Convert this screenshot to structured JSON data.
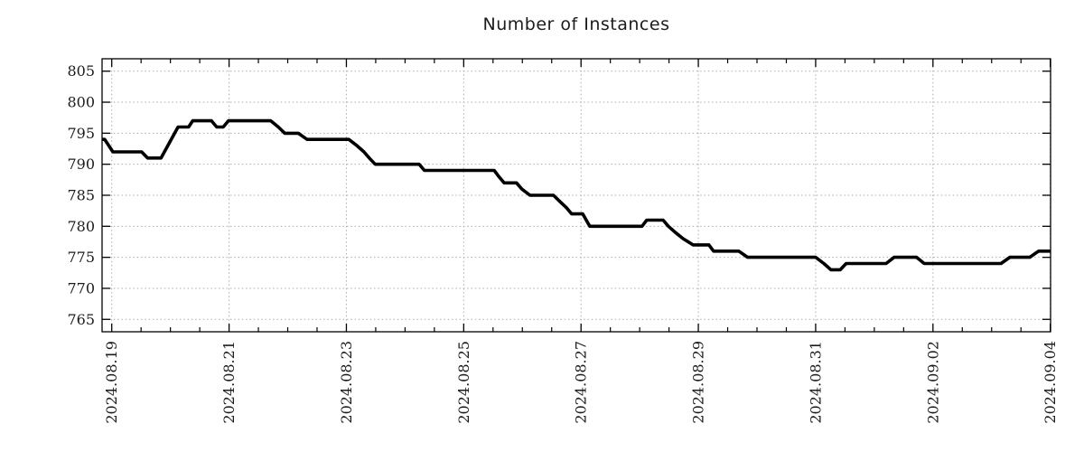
{
  "style": {
    "background": "#ffffff",
    "grid_color": "#ababab",
    "axis_color": "#000000",
    "text_color": "#1c1c1c",
    "line_color": "#000000",
    "line_width": 3.6
  },
  "chart_data": {
    "type": "line",
    "title": "Number of Instances",
    "grid": true,
    "legend": "none",
    "x_axis": {
      "kind": "time",
      "tick_labels": [
        "2024.08.19",
        "2024.08.21",
        "2024.08.23",
        "2024.08.25",
        "2024.08.27",
        "2024.08.29",
        "2024.08.31",
        "2024.09.02",
        "2024.09.04"
      ],
      "major_tick_days": [
        0,
        2,
        4,
        6,
        8,
        10,
        12,
        14,
        16
      ],
      "minor_tick_interval_days": 0.5,
      "range_days": [
        -0.165,
        16.005
      ]
    },
    "y_axis": {
      "tick_values": [
        765,
        770,
        775,
        780,
        785,
        790,
        795,
        800,
        805
      ],
      "range": [
        763,
        807
      ]
    },
    "series": [
      {
        "name": "Number of Instances",
        "color": "#000000",
        "points": [
          [
            -0.17,
            794
          ],
          [
            -0.12,
            794
          ],
          [
            0.02,
            792
          ],
          [
            0.51,
            792
          ],
          [
            0.61,
            791
          ],
          [
            0.84,
            791
          ],
          [
            1.13,
            796
          ],
          [
            1.31,
            796
          ],
          [
            1.38,
            797
          ],
          [
            1.7,
            797
          ],
          [
            1.79,
            796
          ],
          [
            1.9,
            796
          ],
          [
            1.99,
            797
          ],
          [
            2.71,
            797
          ],
          [
            2.84,
            796
          ],
          [
            2.95,
            795
          ],
          [
            3.18,
            795
          ],
          [
            3.33,
            794
          ],
          [
            4.04,
            794
          ],
          [
            4.18,
            793
          ],
          [
            4.3,
            792
          ],
          [
            4.39,
            791
          ],
          [
            4.49,
            790
          ],
          [
            5.24,
            790
          ],
          [
            5.33,
            789
          ],
          [
            6.52,
            789
          ],
          [
            6.6,
            788
          ],
          [
            6.69,
            787
          ],
          [
            6.9,
            787
          ],
          [
            6.99,
            786
          ],
          [
            7.13,
            785
          ],
          [
            7.53,
            785
          ],
          [
            7.64,
            784
          ],
          [
            7.75,
            783
          ],
          [
            7.84,
            782
          ],
          [
            8.03,
            782
          ],
          [
            8.09,
            781
          ],
          [
            8.15,
            780
          ],
          [
            9.04,
            780
          ],
          [
            9.12,
            781
          ],
          [
            9.4,
            781
          ],
          [
            9.49,
            780
          ],
          [
            9.61,
            779
          ],
          [
            9.74,
            778
          ],
          [
            9.91,
            777
          ],
          [
            10.18,
            777
          ],
          [
            10.26,
            776
          ],
          [
            10.69,
            776
          ],
          [
            10.84,
            775
          ],
          [
            12.0,
            775
          ],
          [
            12.14,
            774
          ],
          [
            12.26,
            773
          ],
          [
            12.42,
            773
          ],
          [
            12.52,
            774
          ],
          [
            13.2,
            774
          ],
          [
            13.34,
            775
          ],
          [
            13.72,
            775
          ],
          [
            13.85,
            774
          ],
          [
            15.16,
            774
          ],
          [
            15.31,
            775
          ],
          [
            15.65,
            775
          ],
          [
            15.8,
            776
          ],
          [
            16.0,
            776
          ]
        ]
      }
    ]
  }
}
